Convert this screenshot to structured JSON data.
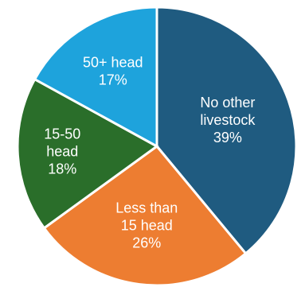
{
  "chart_data": {
    "type": "pie",
    "categories": [
      "No other livestock",
      "Less than 15 head",
      "15-50 head",
      "50+ head"
    ],
    "values": [
      39,
      26,
      18,
      17
    ],
    "colors": [
      "#1f5b80",
      "#ed7d31",
      "#2a6e2a",
      "#1ea3dc"
    ],
    "labels": [
      {
        "lines": [
          "No other",
          "livestock",
          "39%"
        ]
      },
      {
        "lines": [
          "Less than",
          "15 head",
          "26%"
        ]
      },
      {
        "lines": [
          "15-50",
          "head",
          "18%"
        ]
      },
      {
        "lines": [
          "50+ head",
          "17%"
        ]
      }
    ]
  }
}
